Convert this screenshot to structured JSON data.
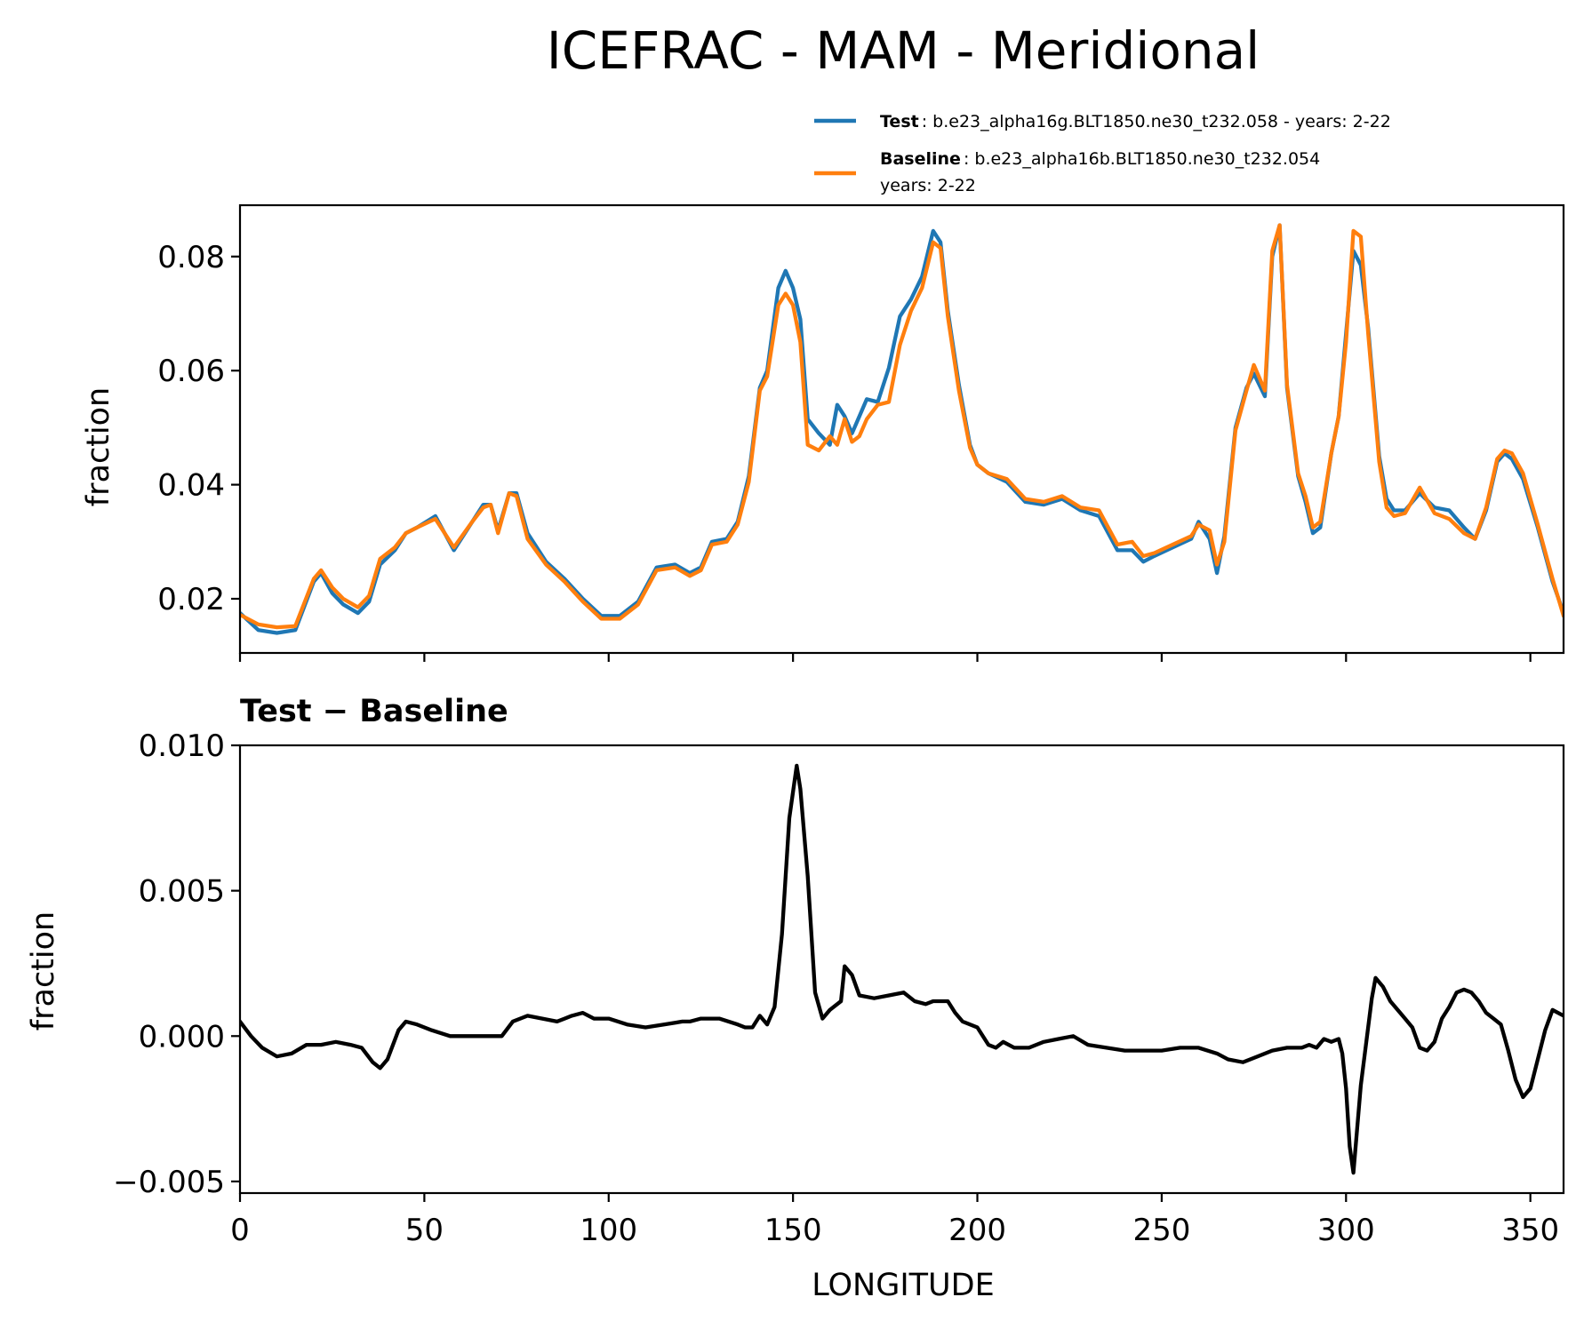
{
  "figure_title": "ICEFRAC - MAM - Meridional",
  "colors": {
    "test": "#1f77b4",
    "baseline": "#ff7f0e",
    "diff": "#000000"
  },
  "legend": {
    "test_name": "Test",
    "test_desc": ": b.e23_alpha16g.BLT1850.ne30_t232.058 - years: 2-22",
    "baseline_name": "Baseline",
    "baseline_desc": ": b.e23_alpha16b.BLT1850.ne30_t232.054",
    "baseline_desc2": "years: 2-22"
  },
  "top_ylabel": "fraction",
  "bottom_title": "Test − Baseline",
  "bottom_ylabel": "fraction",
  "xlabel": "LONGITUDE",
  "chart_data": [
    {
      "type": "line",
      "title": "ICEFRAC - MAM - Meridional",
      "xlabel": "",
      "ylabel": "fraction",
      "xlim": [
        0,
        359
      ],
      "ylim": [
        0.0105,
        0.089
      ],
      "xticks": [
        0,
        50,
        100,
        150,
        200,
        250,
        300,
        350
      ],
      "yticks": [
        0.02,
        0.04,
        0.06,
        0.08
      ],
      "ytick_labels": [
        "0.02",
        "0.04",
        "0.06",
        "0.08"
      ],
      "legend_position": "above-right",
      "x": [
        0,
        5,
        10,
        15,
        20,
        22,
        25,
        28,
        32,
        35,
        38,
        42,
        45,
        48,
        53,
        58,
        63,
        66,
        68,
        70,
        73,
        75,
        78,
        83,
        88,
        93,
        98,
        103,
        108,
        113,
        118,
        122,
        125,
        128,
        132,
        135,
        138,
        141,
        143,
        146,
        148,
        150,
        152,
        154,
        157,
        160,
        162,
        164,
        166,
        168,
        170,
        173,
        176,
        179,
        182,
        185,
        188,
        190,
        192,
        195,
        198,
        200,
        203,
        208,
        213,
        218,
        223,
        228,
        233,
        238,
        242,
        245,
        248,
        253,
        258,
        260,
        263,
        265,
        267,
        270,
        273,
        275,
        278,
        280,
        282,
        284,
        287,
        289,
        291,
        293,
        296,
        298,
        300,
        302,
        304,
        306,
        309,
        311,
        313,
        316,
        320,
        324,
        328,
        332,
        335,
        338,
        341,
        343,
        345,
        348,
        352,
        356,
        359
      ],
      "series": [
        {
          "name": "Test",
          "values": [
            0.0175,
            0.0145,
            0.014,
            0.0145,
            0.023,
            0.0245,
            0.021,
            0.019,
            0.0175,
            0.0195,
            0.026,
            0.0285,
            0.0315,
            0.0325,
            0.0345,
            0.0285,
            0.0335,
            0.0365,
            0.0365,
            0.032,
            0.0385,
            0.0385,
            0.0315,
            0.0265,
            0.0235,
            0.02,
            0.017,
            0.017,
            0.0195,
            0.0255,
            0.026,
            0.0245,
            0.0255,
            0.03,
            0.0305,
            0.0335,
            0.0415,
            0.057,
            0.06,
            0.0745,
            0.0775,
            0.0745,
            0.069,
            0.0515,
            0.049,
            0.047,
            0.054,
            0.052,
            0.049,
            0.052,
            0.055,
            0.0545,
            0.0605,
            0.0695,
            0.0725,
            0.0765,
            0.0845,
            0.0825,
            0.0705,
            0.0575,
            0.047,
            0.0435,
            0.042,
            0.0405,
            0.037,
            0.0365,
            0.0375,
            0.0355,
            0.0345,
            0.0285,
            0.0285,
            0.0265,
            0.0275,
            0.029,
            0.0305,
            0.0335,
            0.0305,
            0.0245,
            0.031,
            0.05,
            0.057,
            0.0595,
            0.0555,
            0.08,
            0.0855,
            0.057,
            0.0415,
            0.037,
            0.0315,
            0.0325,
            0.0455,
            0.052,
            0.0665,
            0.081,
            0.0785,
            0.0675,
            0.045,
            0.0375,
            0.0355,
            0.0355,
            0.0385,
            0.036,
            0.0355,
            0.0325,
            0.0305,
            0.0355,
            0.044,
            0.0455,
            0.0445,
            0.041,
            0.0325,
            0.023,
            0.0175
          ]
        },
        {
          "name": "Baseline",
          "values": [
            0.0172,
            0.0155,
            0.015,
            0.0152,
            0.0235,
            0.025,
            0.022,
            0.02,
            0.0185,
            0.0205,
            0.027,
            0.029,
            0.0315,
            0.0325,
            0.034,
            0.029,
            0.0335,
            0.036,
            0.0365,
            0.0315,
            0.0385,
            0.038,
            0.0305,
            0.026,
            0.023,
            0.0195,
            0.0165,
            0.0165,
            0.019,
            0.025,
            0.0255,
            0.024,
            0.025,
            0.0295,
            0.03,
            0.033,
            0.0405,
            0.0565,
            0.059,
            0.0715,
            0.0735,
            0.0715,
            0.065,
            0.047,
            0.046,
            0.0485,
            0.047,
            0.0515,
            0.0475,
            0.0485,
            0.0515,
            0.054,
            0.0545,
            0.0645,
            0.0705,
            0.0745,
            0.0825,
            0.0815,
            0.0695,
            0.0565,
            0.0465,
            0.0435,
            0.042,
            0.041,
            0.0375,
            0.037,
            0.038,
            0.036,
            0.0355,
            0.0295,
            0.03,
            0.0275,
            0.028,
            0.0295,
            0.031,
            0.033,
            0.032,
            0.026,
            0.03,
            0.0495,
            0.0565,
            0.061,
            0.0565,
            0.081,
            0.0855,
            0.0575,
            0.042,
            0.038,
            0.0325,
            0.0335,
            0.0455,
            0.052,
            0.065,
            0.0845,
            0.0835,
            0.0665,
            0.044,
            0.036,
            0.0345,
            0.035,
            0.0395,
            0.035,
            0.034,
            0.0315,
            0.0305,
            0.036,
            0.0445,
            0.046,
            0.0455,
            0.042,
            0.033,
            0.0235,
            0.017
          ]
        }
      ]
    },
    {
      "type": "line",
      "title": "Test − Baseline",
      "xlabel": "LONGITUDE",
      "ylabel": "fraction",
      "xlim": [
        0,
        359
      ],
      "ylim": [
        -0.0054,
        0.01
      ],
      "xticks": [
        0,
        50,
        100,
        150,
        200,
        250,
        300,
        350
      ],
      "xtick_labels": [
        "0",
        "50",
        "100",
        "150",
        "200",
        "250",
        "300",
        "350"
      ],
      "yticks": [
        -0.005,
        0.0,
        0.005,
        0.01
      ],
      "ytick_labels": [
        "−0.005",
        "0.000",
        "0.005",
        "0.010"
      ],
      "x": [
        0,
        3,
        6,
        10,
        14,
        18,
        22,
        26,
        30,
        33,
        36,
        38,
        40,
        43,
        45,
        48,
        52,
        57,
        62,
        67,
        71,
        74,
        78,
        82,
        86,
        90,
        93,
        96,
        100,
        105,
        110,
        115,
        120,
        122,
        125,
        130,
        135,
        137,
        139,
        141,
        143,
        145,
        147,
        149,
        151,
        152,
        154,
        156,
        158,
        160,
        163,
        164,
        166,
        168,
        172,
        176,
        180,
        183,
        186,
        188,
        192,
        194,
        196,
        200,
        203,
        205,
        207,
        210,
        214,
        218,
        222,
        226,
        230,
        240,
        250,
        255,
        260,
        265,
        268,
        272,
        276,
        280,
        284,
        288,
        290,
        292,
        294,
        296,
        298,
        299,
        300,
        301,
        302,
        304,
        307,
        308,
        310,
        312,
        314,
        316,
        318,
        320,
        322,
        324,
        326,
        328,
        330,
        332,
        334,
        336,
        338,
        340,
        342,
        344,
        346,
        348,
        350,
        352,
        354,
        356,
        359
      ],
      "series": [
        {
          "name": "Test − Baseline",
          "values": [
            0.0005,
            0.0,
            -0.0004,
            -0.0007,
            -0.0006,
            -0.0003,
            -0.0003,
            -0.0002,
            -0.0003,
            -0.0004,
            -0.0009,
            -0.0011,
            -0.0008,
            0.0002,
            0.0005,
            0.0004,
            0.0002,
            0.0,
            0.0,
            0.0,
            0.0,
            0.0005,
            0.0007,
            0.0006,
            0.0005,
            0.0007,
            0.0008,
            0.0006,
            0.0006,
            0.0004,
            0.0003,
            0.0004,
            0.0005,
            0.0005,
            0.0006,
            0.0006,
            0.0004,
            0.0003,
            0.0003,
            0.0007,
            0.0004,
            0.001,
            0.0035,
            0.0075,
            0.0093,
            0.0085,
            0.0055,
            0.0015,
            0.0006,
            0.0009,
            0.0012,
            0.0024,
            0.0021,
            0.0014,
            0.0013,
            0.0014,
            0.0015,
            0.0012,
            0.0011,
            0.0012,
            0.0012,
            0.0008,
            0.0005,
            0.0003,
            -0.0003,
            -0.0004,
            -0.0002,
            -0.0004,
            -0.0004,
            -0.0002,
            -0.0001,
            0.0,
            -0.0003,
            -0.0005,
            -0.0005,
            -0.0004,
            -0.0004,
            -0.0006,
            -0.0008,
            -0.0009,
            -0.0007,
            -0.0005,
            -0.0004,
            -0.0004,
            -0.0003,
            -0.0004,
            -0.0001,
            -0.0002,
            -0.0001,
            -0.0006,
            -0.0018,
            -0.0038,
            -0.0047,
            -0.0017,
            0.0013,
            0.002,
            0.0017,
            0.0012,
            0.0009,
            0.0006,
            0.0003,
            -0.0004,
            -0.0005,
            -0.0002,
            0.0006,
            0.001,
            0.0015,
            0.0016,
            0.0015,
            0.0012,
            0.0008,
            0.0006,
            0.0004,
            -0.0005,
            -0.0015,
            -0.0021,
            -0.0018,
            -0.0008,
            0.0002,
            0.0009,
            0.0007
          ]
        }
      ]
    }
  ]
}
